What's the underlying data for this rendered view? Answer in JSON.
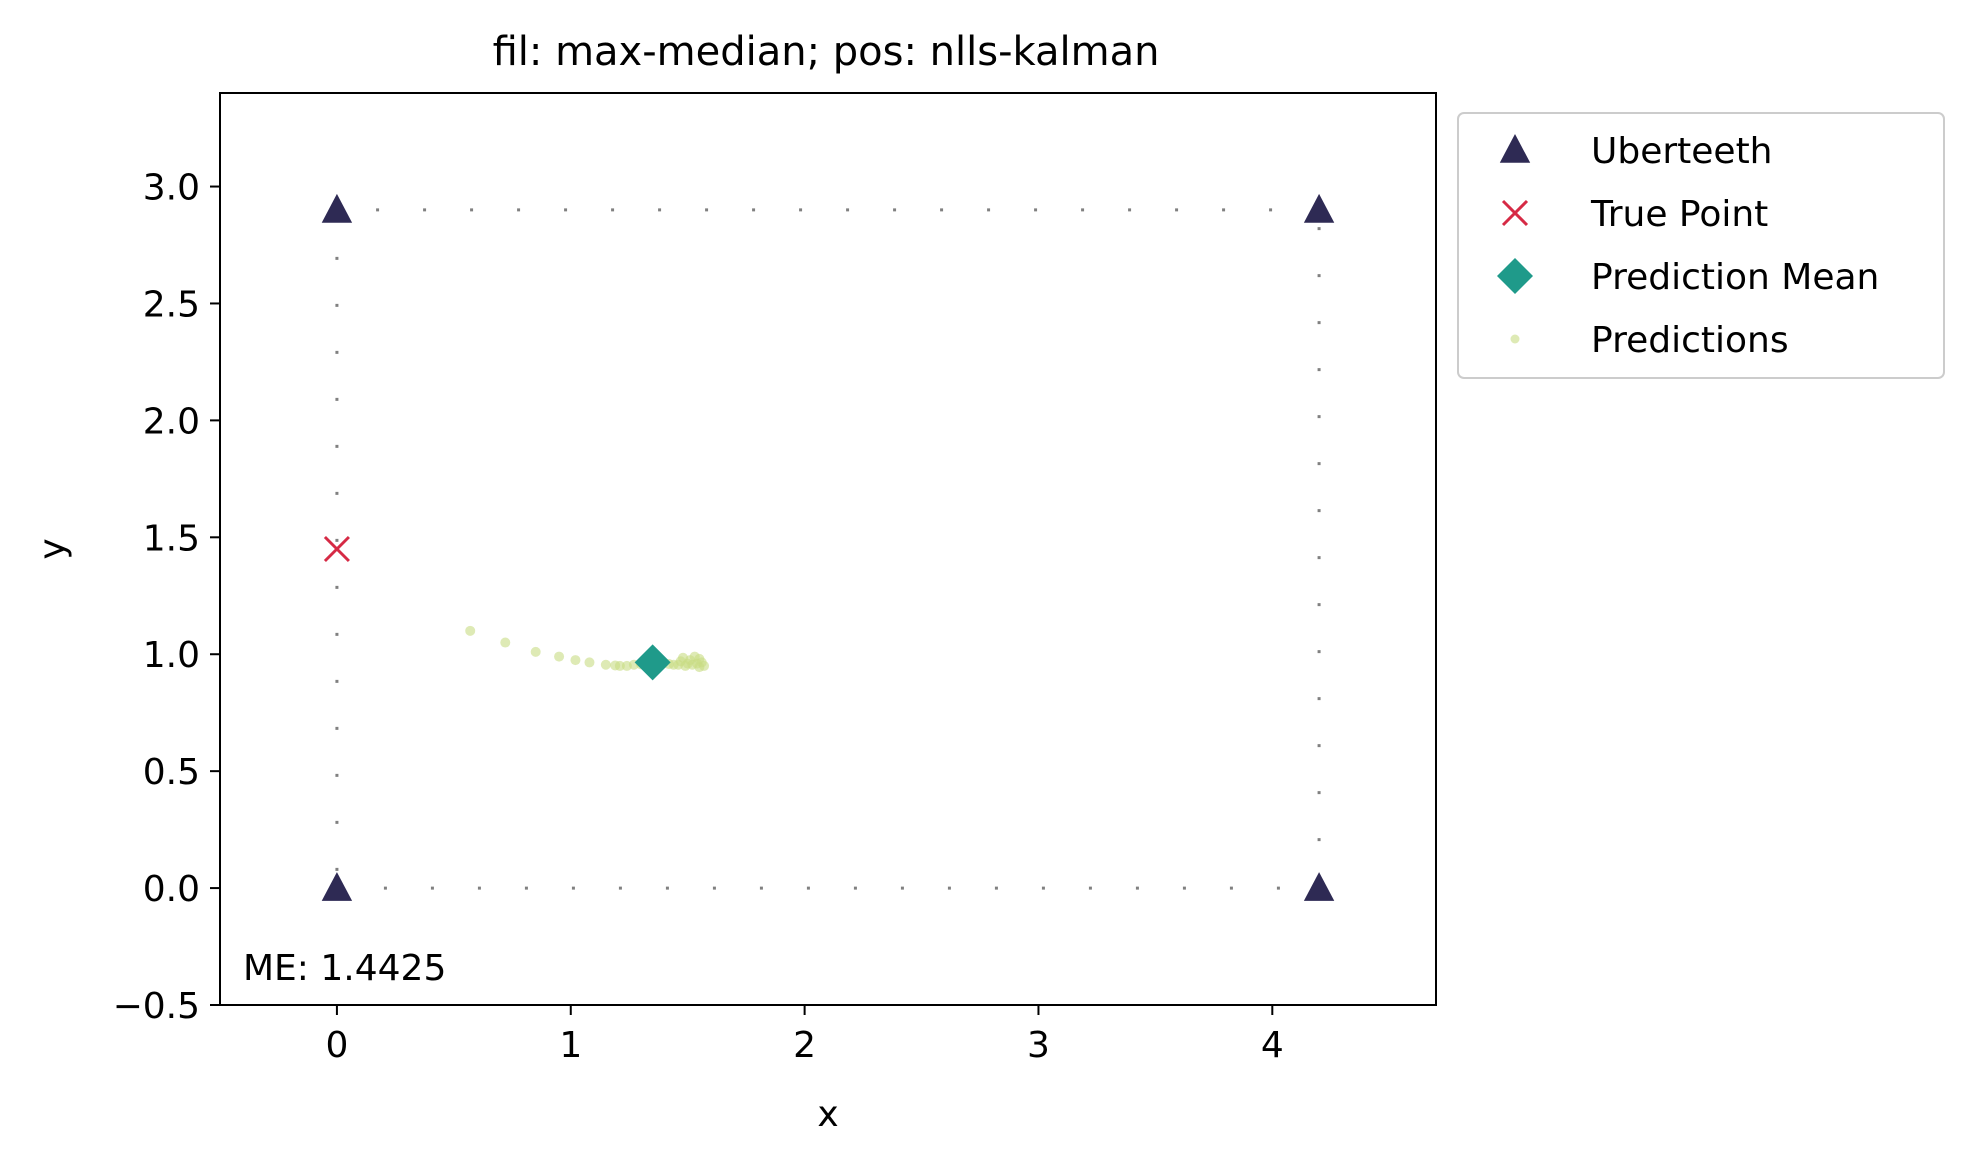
{
  "chart_data": {
    "type": "scatter",
    "title": "fil: max-median; pos: nlls-kalman",
    "xlabel": "x",
    "ylabel": "y",
    "xlim": [
      -0.5,
      4.7
    ],
    "ylim": [
      -0.5,
      3.4
    ],
    "xticks": [
      0,
      1,
      2,
      3,
      4
    ],
    "xtick_labels": [
      "0",
      "1",
      "2",
      "3",
      "4"
    ],
    "yticks": [
      -0.5,
      0.0,
      0.5,
      1.0,
      1.5,
      2.0,
      2.5,
      3.0
    ],
    "ytick_labels": [
      "−0.5",
      "0.0",
      "0.5",
      "1.0",
      "1.5",
      "2.0",
      "2.5",
      "3.0"
    ],
    "grid": false,
    "legend_position": "outside-top-right",
    "boundary": {
      "style": "dotted",
      "color": "#808080",
      "corners": [
        [
          0,
          0
        ],
        [
          4.2,
          0
        ],
        [
          4.2,
          2.9
        ],
        [
          0,
          2.9
        ]
      ]
    },
    "annotation": "ME: 1.4425",
    "series": [
      {
        "name": "Uberteeth",
        "marker": "triangle",
        "color": "#2e2a54",
        "points": [
          [
            0,
            0
          ],
          [
            4.2,
            0
          ],
          [
            0,
            2.9
          ],
          [
            4.2,
            2.9
          ]
        ]
      },
      {
        "name": "True Point",
        "marker": "x",
        "color": "#d62a45",
        "points": [
          [
            0,
            1.45
          ]
        ]
      },
      {
        "name": "Prediction Mean",
        "marker": "diamond",
        "color": "#1f9a8a",
        "points": [
          [
            1.35,
            0.965
          ]
        ]
      },
      {
        "name": "Predictions",
        "marker": "dot",
        "color": "#c8dc84",
        "points": [
          [
            0.57,
            1.1
          ],
          [
            0.72,
            1.05
          ],
          [
            0.85,
            1.01
          ],
          [
            0.95,
            0.99
          ],
          [
            1.02,
            0.975
          ],
          [
            1.08,
            0.965
          ],
          [
            1.15,
            0.955
          ],
          [
            1.19,
            0.952
          ],
          [
            1.21,
            0.95
          ],
          [
            1.24,
            0.95
          ],
          [
            1.27,
            0.955
          ],
          [
            1.3,
            0.957
          ],
          [
            1.33,
            0.96
          ],
          [
            1.36,
            0.962
          ],
          [
            1.39,
            0.96
          ],
          [
            1.42,
            0.958
          ],
          [
            1.44,
            0.955
          ],
          [
            1.46,
            0.955
          ],
          [
            1.47,
            0.97
          ],
          [
            1.48,
            0.985
          ],
          [
            1.49,
            0.95
          ],
          [
            1.5,
            0.96
          ],
          [
            1.51,
            0.975
          ],
          [
            1.52,
            0.955
          ],
          [
            1.53,
            0.99
          ],
          [
            1.54,
            0.96
          ],
          [
            1.55,
            0.945
          ],
          [
            1.55,
            0.98
          ],
          [
            1.56,
            0.965
          ],
          [
            1.57,
            0.95
          ]
        ]
      }
    ]
  }
}
